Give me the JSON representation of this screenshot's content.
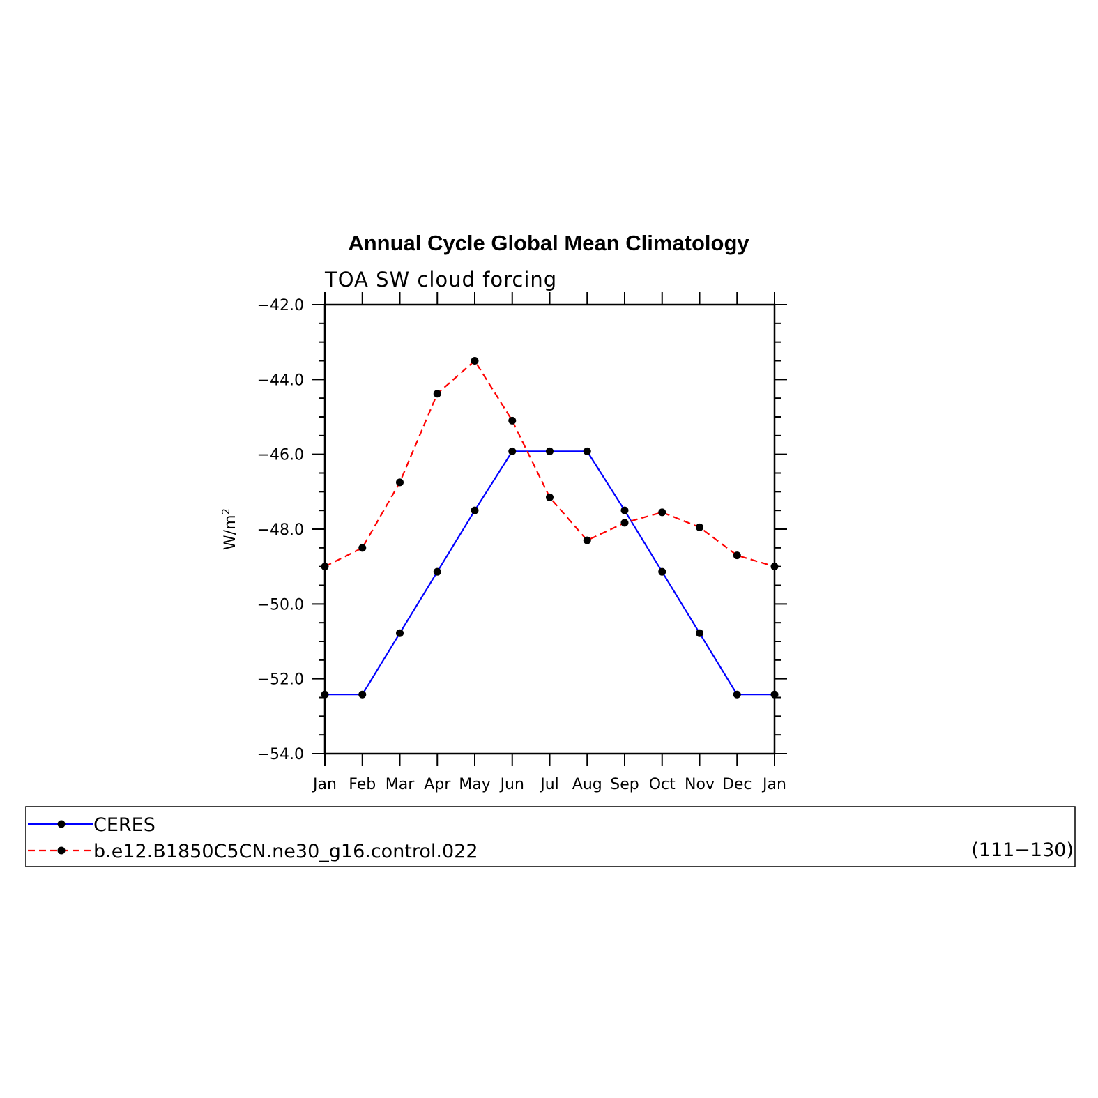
{
  "chart_data": {
    "type": "line",
    "title": "Annual Cycle Global Mean Climatology",
    "subtitle": "TOA SW cloud forcing",
    "ylabel": "W/m",
    "ylabel_sup": "2",
    "ylim": [
      -54.0,
      -42.0
    ],
    "yticks": [
      "-42.0",
      "-44.0",
      "-46.0",
      "-48.0",
      "-50.0",
      "-52.0",
      "-54.0"
    ],
    "categories": [
      "Jan",
      "Feb",
      "Mar",
      "Apr",
      "May",
      "Jun",
      "Jul",
      "Aug",
      "Sep",
      "Oct",
      "Nov",
      "Dec",
      "Jan"
    ],
    "series": [
      {
        "name": "CERES",
        "color": "#0000ff",
        "dash": "solid",
        "values": [
          -52.42,
          -52.42,
          -50.78,
          -49.14,
          -47.5,
          -45.92,
          -45.92,
          -45.92,
          -47.5,
          -49.14,
          -50.78,
          -52.42,
          -52.42
        ]
      },
      {
        "name": "b.e12.B1850C5CN.ne30_g16.control.022",
        "color": "#ff0000",
        "dash": "dashed",
        "values": [
          -49.0,
          -48.5,
          -46.75,
          -44.38,
          -43.5,
          -45.1,
          -47.15,
          -48.3,
          -47.83,
          -47.55,
          -47.95,
          -48.7,
          -49.0
        ]
      }
    ],
    "legend": {
      "placement": "bottom",
      "note": "(111−130)"
    },
    "grid": false,
    "marker_color": "#000000"
  }
}
